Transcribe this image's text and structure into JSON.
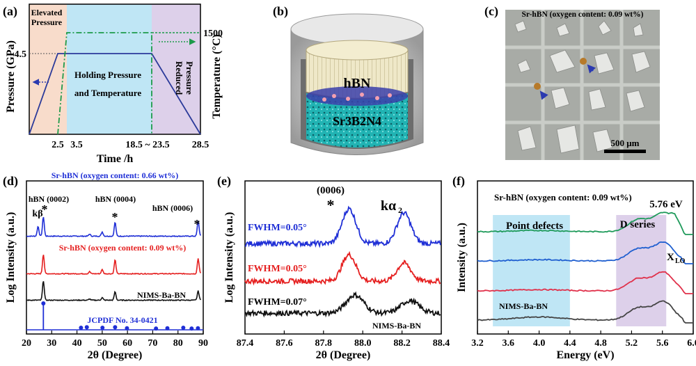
{
  "panels": {
    "a": {
      "label": "(a)"
    },
    "b": {
      "label": "(b)"
    },
    "c": {
      "label": "(c)"
    },
    "d": {
      "label": "(d)"
    },
    "e": {
      "label": "(e)"
    },
    "f": {
      "label": "(f)"
    }
  },
  "chart_data": [
    {
      "type": "line",
      "panel": "a",
      "xlabel": "Time /h",
      "ylabel": "Pressure (GPa)",
      "y2label": "Temperature (°C)",
      "x_ticks": [
        "2.5",
        "3.5",
        "18.5 ~ 23.5",
        "28.5"
      ],
      "y_tick": "4.5",
      "y2_tick": "1500",
      "regions": [
        "Elevated Pressure",
        "Holding Pressure and Temperature",
        "Reduced Pressure"
      ],
      "region_lines": [
        "Elevated",
        "Pressure",
        "Holding Pressure",
        "and Temperature",
        "Reduced",
        "Pressure"
      ],
      "region_colors": [
        "#f8dccb",
        "#bfe6f5",
        "#ddd0ea"
      ],
      "series": [
        {
          "name": "",
          "style": "solid",
          "color": "#2b3a9a",
          "x": [
            0,
            2.5,
            3.5,
            18.5,
            23.5,
            28.5
          ],
          "y": [
            0,
            4.5,
            4.5,
            4.5,
            4.5,
            0
          ]
        },
        {
          "name": "",
          "style": "dash-dot",
          "color": "#1d9a4a",
          "x": [
            2.5,
            3.5,
            18.5,
            23.5
          ],
          "y": [
            0,
            1500,
            1500,
            0
          ]
        }
      ]
    },
    {
      "type": "image",
      "panel": "b",
      "labels": [
        "hBN",
        "Sr3B2N4"
      ]
    },
    {
      "type": "image",
      "panel": "c",
      "title": "Sr-hBN (oxygen content: 0.09 wt%)",
      "scale_bar": "500 μm"
    },
    {
      "type": "line",
      "panel": "d",
      "xlabel": "2θ (Degree)",
      "ylabel": "Log Intensity (a.u.)",
      "xlim": [
        20,
        90
      ],
      "x_ticks": [
        "20",
        "30",
        "40",
        "50",
        "60",
        "70",
        "80",
        "90"
      ],
      "series": [
        {
          "name": "Sr-hBN (oxygen content: 0.66 wt%)",
          "color": "#1f2fd6"
        },
        {
          "name": "Sr-hBN (oxygen content: 0.09 wt%)",
          "color": "#e52020"
        },
        {
          "name": "NIMS-Ba-BN",
          "color": "#111111"
        }
      ],
      "reference": {
        "name": "JCPDF No. 34-0421",
        "color": "#1f2fd6",
        "x": [
          26.7,
          41.6,
          43.9,
          50.1,
          55.1,
          59.8,
          71.3,
          75.8,
          82.1,
          85.4,
          87.9
        ],
        "h": [
          1.0,
          0.08,
          0.1,
          0.08,
          0.1,
          0.06,
          0.05,
          0.06,
          0.08,
          0.05,
          0.06
        ]
      },
      "annotations": [
        "hBN (0002)",
        "hBN (0004)",
        "hBN (0006)",
        "kβ",
        "*"
      ]
    },
    {
      "type": "line",
      "panel": "e",
      "xlabel": "2θ (Degree)",
      "ylabel": "Log Intensity (a.u.)",
      "xlim": [
        87.4,
        88.4
      ],
      "x_ticks": [
        "87.4",
        "87.6",
        "87.8",
        "88.0",
        "88.2",
        "88.4"
      ],
      "series": [
        {
          "name": "FWHM=0.05°",
          "color": "#1f2fd6",
          "peaks": [
            87.93,
            88.21
          ]
        },
        {
          "name": "FWHM=0.05°",
          "color": "#e52020",
          "peaks": [
            87.93,
            88.21
          ]
        },
        {
          "name": "FWHM=0.07°",
          "color": "#111111",
          "peaks": [
            87.96,
            88.24
          ]
        }
      ],
      "labels": {
        "peak1": "(0006)",
        "star": "*",
        "peak2": "kα",
        "peak2_sub": "2",
        "sample": "NIMS-Ba-BN"
      }
    },
    {
      "type": "line",
      "panel": "f",
      "title": "Sr-hBN (oxygen content: 0.09 wt%)",
      "xlabel": "Energy (eV)",
      "ylabel": "Intensity (a.u.)",
      "xlim": [
        3.2,
        6.0
      ],
      "x_ticks": [
        "3.2",
        "3.6",
        "4.0",
        "4.4",
        "4.8",
        "5.2",
        "5.6",
        "6.0"
      ],
      "bands": [
        {
          "label": "Point defects",
          "x": [
            3.4,
            4.4
          ],
          "color": "#bfe6f5"
        },
        {
          "label": "D series",
          "x": [
            5.0,
            5.65
          ],
          "color": "#ddd0ea"
        }
      ],
      "series": [
        {
          "name": "",
          "color": "#1e9a5a"
        },
        {
          "name": "",
          "color": "#1f5fd0"
        },
        {
          "name": "",
          "color": "#e0304a"
        },
        {
          "name": "NIMS-Ba-BN",
          "color": "#444444"
        }
      ],
      "annotations": {
        "peak": "5.76 eV",
        "xlo": "X",
        "xlo_sub": "LO"
      }
    }
  ]
}
